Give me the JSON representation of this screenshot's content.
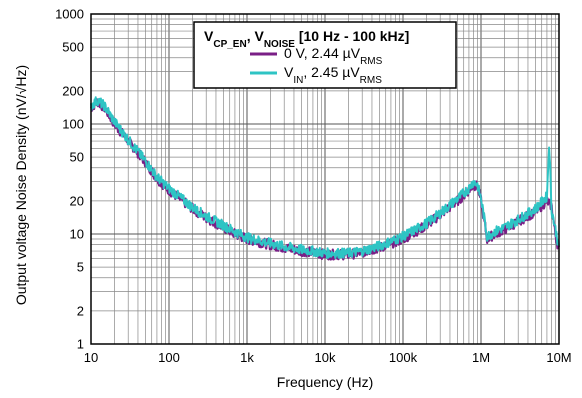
{
  "chart_data": {
    "type": "line",
    "xlabel": "Frequency (Hz)",
    "ylabel": "Output voltage Noise Density (nV/√Hz)",
    "xscale": "log",
    "yscale": "log",
    "xlim": [
      10,
      10000000
    ],
    "ylim": [
      1,
      1000
    ],
    "grid": true,
    "legend_position": "top-right",
    "x_ticks": [
      10,
      100,
      1000,
      10000,
      100000,
      1000000,
      10000000
    ],
    "x_tick_labels": [
      "10",
      "100",
      "1k",
      "10k",
      "100k",
      "1M",
      "10M"
    ],
    "y_ticks": [
      1,
      2,
      5,
      10,
      20,
      50,
      100,
      200,
      500,
      1000
    ],
    "y_tick_labels": [
      "1",
      "2",
      "5",
      "10",
      "20",
      "50",
      "100",
      "200",
      "500",
      "1000"
    ],
    "legend": {
      "title_parts": [
        {
          "text": "V",
          "sub": false
        },
        {
          "text": "CP_EN",
          "sub": true
        },
        {
          "text": ", V",
          "sub": false
        },
        {
          "text": "NOISE",
          "sub": true
        },
        {
          "text": " [10 Hz - 100 kHz]",
          "sub": false
        }
      ],
      "entries": [
        {
          "parts": [
            {
              "text": "0 V, 2.44 µV",
              "sub": false
            },
            {
              "text": "RMS",
              "sub": true
            }
          ]
        },
        {
          "parts": [
            {
              "text": "V",
              "sub": false
            },
            {
              "text": "IN",
              "sub": true
            },
            {
              "text": ", 2.45 µV",
              "sub": false
            },
            {
              "text": "RMS",
              "sub": true
            }
          ]
        }
      ]
    },
    "series": [
      {
        "color": "#7a1f86",
        "x": [
          10,
          12,
          15,
          20,
          30,
          50,
          70,
          100,
          200,
          300,
          500,
          700,
          1000,
          2000,
          3000,
          5000,
          7000,
          10000,
          20000,
          30000,
          50000,
          100000,
          200000,
          300000,
          500000,
          700000,
          800000,
          900000,
          1000000,
          1200000,
          1500000,
          2000000,
          3000000,
          5000000,
          7000000,
          8000000,
          9000000,
          10000000
        ],
        "y": [
          140,
          160,
          140,
          100,
          70,
          45,
          32,
          25,
          17,
          14,
          11.5,
          10,
          9,
          8,
          7.5,
          7,
          6.8,
          6.5,
          6.5,
          6.8,
          7.5,
          9,
          12,
          15,
          20,
          25,
          28,
          27,
          20,
          9,
          10,
          11,
          13,
          16,
          20,
          18,
          10,
          7
        ]
      },
      {
        "color": "#2ec4c4",
        "x": [
          10,
          12,
          15,
          20,
          30,
          50,
          70,
          100,
          200,
          300,
          500,
          700,
          1000,
          2000,
          3000,
          5000,
          7000,
          10000,
          20000,
          30000,
          50000,
          100000,
          200000,
          300000,
          500000,
          700000,
          800000,
          900000,
          1000000,
          1200000,
          1500000,
          2000000,
          3000000,
          5000000,
          7000000,
          7500000,
          8000000,
          9000000,
          10000000
        ],
        "y": [
          145,
          165,
          145,
          105,
          72,
          46,
          33,
          26,
          17.5,
          14.5,
          12,
          10.5,
          9.3,
          8.2,
          7.7,
          7.2,
          7,
          6.7,
          6.7,
          7,
          7.8,
          9.5,
          12.5,
          15.5,
          21,
          26,
          30,
          28,
          21,
          9.5,
          10.5,
          11.5,
          13.5,
          17,
          22,
          70,
          17,
          11,
          7.5
        ]
      }
    ]
  }
}
